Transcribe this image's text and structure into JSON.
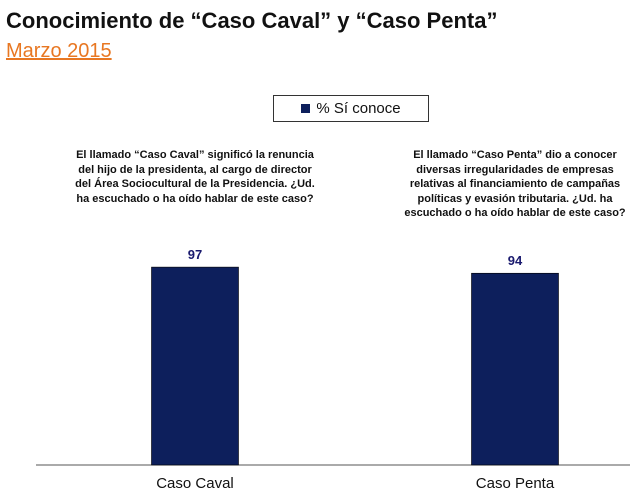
{
  "title": "Conocimiento de “Caso Caval” y “Caso Penta”",
  "subtitle": "Marzo 2015",
  "colors": {
    "bar": "#0D1F5C",
    "value_label": "#1A1A6E",
    "subtitle": "#E87722"
  },
  "questions": [
    "El llamado “Caso Caval” significó la renuncia del hijo de la presidenta, al cargo de director del Área Sociocultural de la Presidencia. ¿Ud. ha escuchado o ha oído hablar de este caso?",
    "El llamado “Caso Penta” dio a conocer diversas irregularidades de empresas relativas al financiamiento de campañas políticas y evasión tributaria. ¿Ud. ha escuchado o ha oído hablar de este caso?"
  ],
  "chart_data": {
    "type": "bar",
    "categories": [
      "Caso Caval",
      "Caso Penta"
    ],
    "series": [
      {
        "name": "% Sí conoce",
        "values": [
          97,
          94
        ]
      }
    ],
    "data_labels": [
      "97",
      "94"
    ],
    "ylim": [
      0,
      100
    ],
    "grid": false,
    "legend_position": "top-center"
  }
}
